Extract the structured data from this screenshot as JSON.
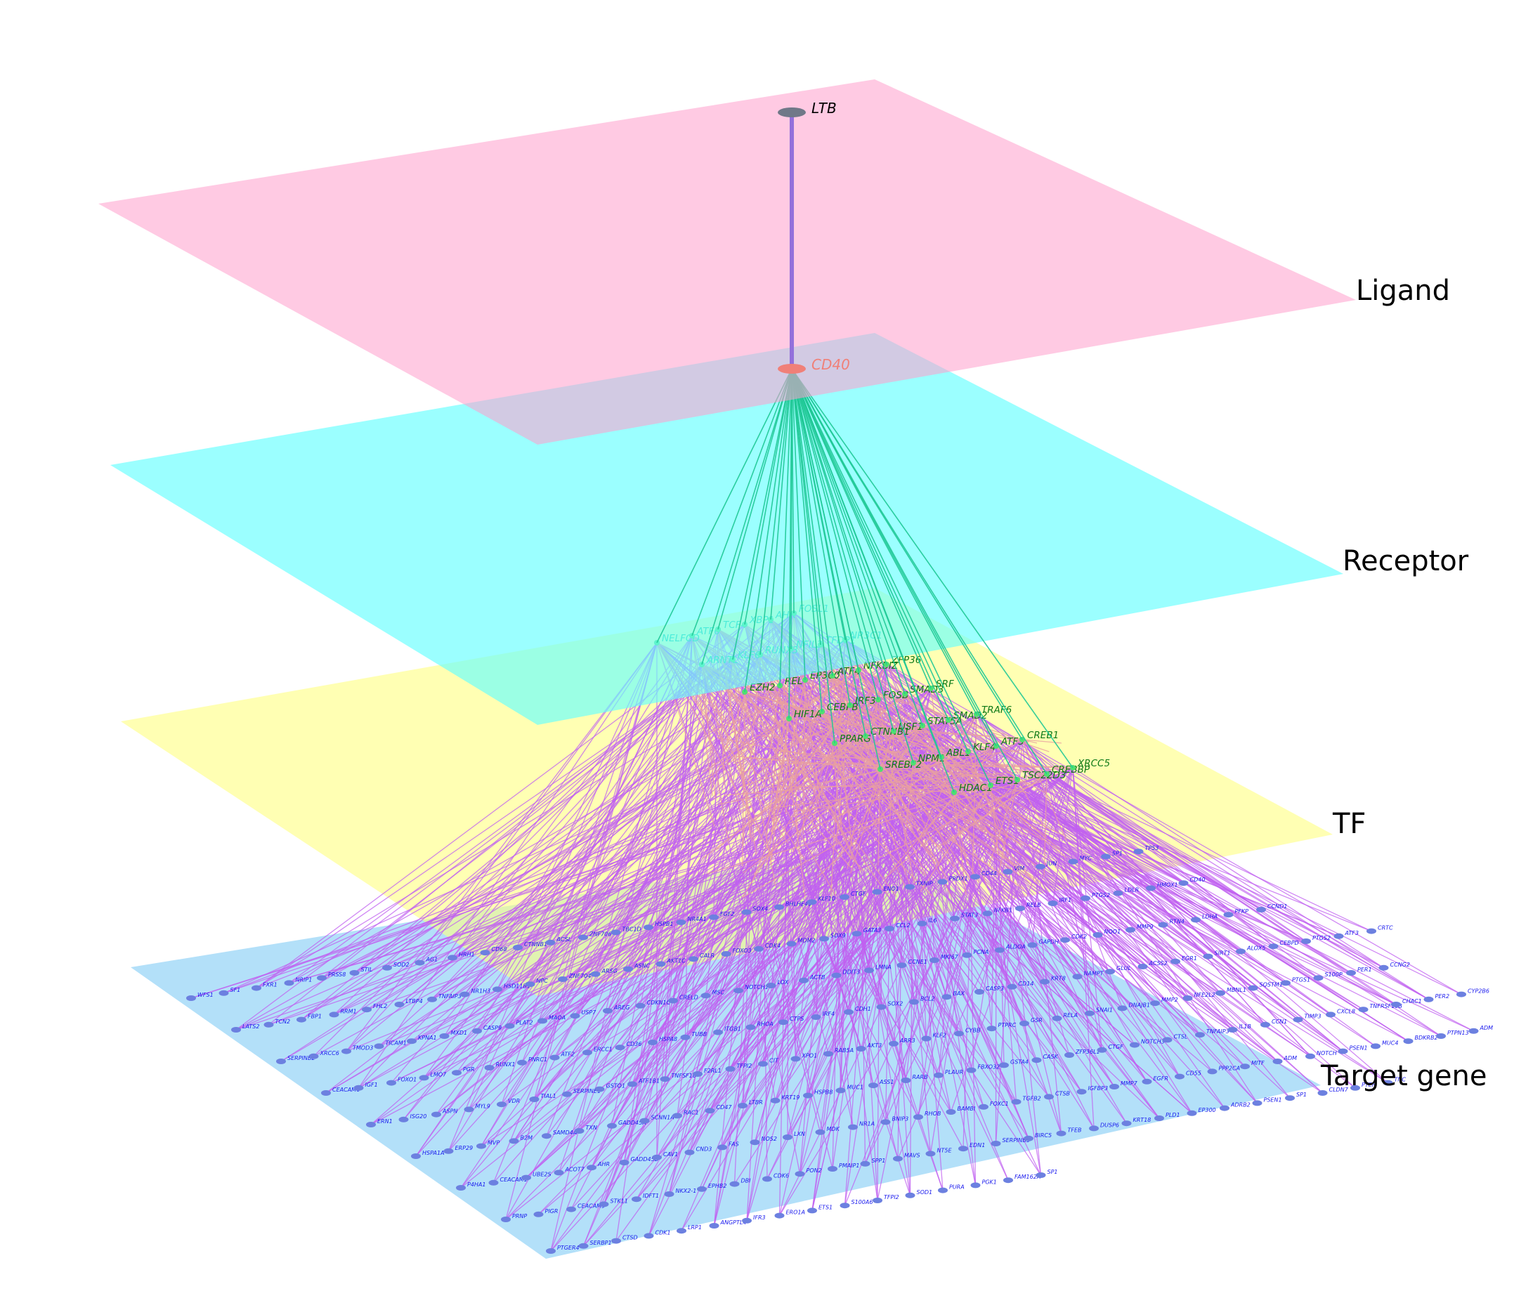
{
  "layers": [
    {
      "key": "ligand",
      "label": "Ligand",
      "color": "#ff9fcc"
    },
    {
      "key": "receptor",
      "label": "Receptor",
      "color": "#66ffff"
    },
    {
      "key": "tf",
      "label": "TF",
      "color": "#ffff80"
    },
    {
      "key": "target",
      "label": "Target gene",
      "color": "#80ccf5"
    }
  ],
  "colors": {
    "ligand_node": "#707888",
    "receptor_node": "#f08078",
    "tf_node": "#50e070",
    "target_node": "#6c80e0",
    "ligand_receptor_edge": "#9370db",
    "receptor_tf_edge": "#1ec895",
    "tf_tf_edge": "#e8a0a0",
    "tf_target_edge": "#c060f0",
    "tf_text_light": "#1ec895",
    "tf_text_dark": "#107a18",
    "target_text": "#1a1aee"
  },
  "ligand": "LTB",
  "receptor": "CD40",
  "tfs": [
    "NELFCD",
    "ATF6",
    "TCF4",
    "XBP1",
    "AHR",
    "FOSL1",
    "ARNTL",
    "KLF6",
    "RUNX3",
    "NFIL3",
    "TFDP1",
    "NR3C1",
    "EZH2",
    "REL",
    "EP300",
    "ATF4",
    "NFKBIZ",
    "ZFP36",
    "HIF1A",
    "CEBPB",
    "IRF3",
    "FOSB",
    "SMAD3",
    "SRF",
    "PPARG",
    "CTNNB1",
    "USF1",
    "STAT5A",
    "SMAD2",
    "TRAF6",
    "SREBF2",
    "NPM1",
    "ABL1",
    "KLF4",
    "ATF3",
    "CREB1",
    "HDAC1",
    "ETS1",
    "TSC22D3",
    "CREBBP",
    "XRCC5"
  ],
  "target_genes": [
    [
      "WFS1",
      "SF1",
      "FXR1",
      "NRIP1",
      "PRSS8",
      "STIL",
      "SOD2",
      "AG1",
      "HRH1",
      "CD68",
      "CTNNB1",
      "ACSL",
      "ZNF706",
      "TBC1D",
      "HSPB1",
      "NR4A1",
      "FGF2",
      "SOX4",
      "BHLHE40",
      "KLF10",
      "CTGF",
      "ENO1",
      "TXNIP",
      "PRDX1",
      "CD44",
      "VIM",
      "JUN",
      "MYC",
      "SP1",
      "TP53"
    ],
    [
      "LATS2",
      "TCN2",
      "FBP1",
      "RRM1",
      "FHL2",
      "LTBP4",
      "TNFAIP3",
      "NR1H3",
      "HSD11B1",
      "NPC",
      "ZNF704",
      "ARSG",
      "ASNC",
      "AKT1C",
      "CALR",
      "FOXO3",
      "CDK4",
      "MDM2",
      "SOX9",
      "GATA3",
      "CCL2",
      "IL6",
      "STAT3",
      "NFKB1",
      "RELB",
      "IRF1",
      "PTGS2",
      "LDLR",
      "HMOX1",
      "CD40"
    ],
    [
      "SERPINB2",
      "XRCC6",
      "TMOD3",
      "TICAM1",
      "KPNA1",
      "MXD1",
      "CASP9",
      "PLAT2",
      "MAOA",
      "USP7",
      "AREG",
      "CDKN1C",
      "CRELD",
      "MSC",
      "NOTCH1",
      "LOX",
      "ACTB",
      "DDIT3",
      "LMNA",
      "CCNE1",
      "MKI67",
      "PCNA",
      "ALDOA",
      "GAPDH",
      "CDK2",
      "NQO1",
      "MMP9",
      "RTN4",
      "LDHA",
      "PFKP",
      "CCND1"
    ],
    [
      "CEACAM6",
      "IGF1",
      "FOXO1",
      "LMO7",
      "PGR",
      "RUNX1",
      "PNRC1",
      "ATF2",
      "ERCC1",
      "CD36",
      "HSPA8",
      "TUBB",
      "ITGB1",
      "RHOA",
      "CTPS",
      "IRF4",
      "CDH1",
      "SOX2",
      "BCL2",
      "BAX",
      "CASP3",
      "CD14",
      "KRT8",
      "NAMPT",
      "GLUL",
      "ACSS2",
      "EGR1",
      "SIRT1",
      "ALOX5",
      "CEBPD",
      "PTGS2",
      "ATF3",
      "CRTC"
    ],
    [
      "ERN1",
      "ISG20",
      "ASPN",
      "MYL9",
      "VDR",
      "TIAL1",
      "SERPINE1",
      "GSTO1",
      "ATF1B1",
      "TNFSF10",
      "F2RL1",
      "TFPI2",
      "CIT",
      "XPO1",
      "RAB5A",
      "AKT3",
      "ARR3",
      "KLF2",
      "CYBB",
      "PTPRC",
      "GSR",
      "RELA",
      "SNAI1",
      "DNAJB1",
      "MMP2",
      "NFE2L2",
      "MBNL1",
      "SQSTM1",
      "PTGS1",
      "S100P",
      "PER1",
      "CCNG2"
    ],
    [
      "HSPA1A",
      "ERP29",
      "MVP",
      "B2M",
      "SAMD4A",
      "TXN",
      "GADD45A",
      "SCNN1A",
      "RAC1",
      "CD47",
      "LTBR",
      "KRT19",
      "HSPB8",
      "MUC1",
      "ASS1",
      "RARB",
      "PLAUR",
      "FBXO32",
      "GSTA4",
      "CASK",
      "ZFP36L1",
      "CTGF",
      "NOTCH3",
      "CTSL",
      "TNFAIP3",
      "IL1B",
      "CCN1",
      "TIMP3",
      "CXCL8",
      "TNFRSF10B",
      "CHAC1",
      "PER2",
      "CYP2B6"
    ],
    [
      "P4HA1",
      "CEACAM1",
      "UBE2S",
      "ACOT7",
      "AHR",
      "GADD45B",
      "CAV1",
      "CND3",
      "FAS",
      "NOS2",
      "LXN",
      "MDK",
      "NR1A",
      "BNIP3",
      "RHOB",
      "BAMBI",
      "FOXC1",
      "TGFB2",
      "CTSB",
      "IGFBP3",
      "MMP7",
      "EGFR",
      "CD55",
      "PPP2CA",
      "MITF",
      "ADM",
      "NOTCH",
      "PSEN1",
      "MUC4",
      "BDKRB2",
      "PTPN13",
      "ADM"
    ],
    [
      "PRNP",
      "PIGR",
      "CEACAM5",
      "STK11",
      "IDFT1",
      "NKX2-1",
      "EPHB2",
      "DBI",
      "CDK6",
      "PON2",
      "PMAIP1",
      "SPP1",
      "MAVS",
      "NT5E",
      "EDN1",
      "SERPINB5",
      "BIRC5",
      "TFEB",
      "DUSP6",
      "KRT18",
      "PLD1",
      "EP300",
      "ADRB2",
      "PSEN1",
      "SP1",
      "CLDN7",
      "PTEN",
      "TNC"
    ],
    [
      "PTGER4",
      "SERBP1",
      "CTSD",
      "CDK1",
      "LRP1",
      "ANGPTL4",
      "IFR3",
      "ERO1A",
      "ETS1",
      "S100A6",
      "TFPI2",
      "SOD1",
      "PURA",
      "PGK1",
      "FAM162A",
      "SP1"
    ]
  ]
}
